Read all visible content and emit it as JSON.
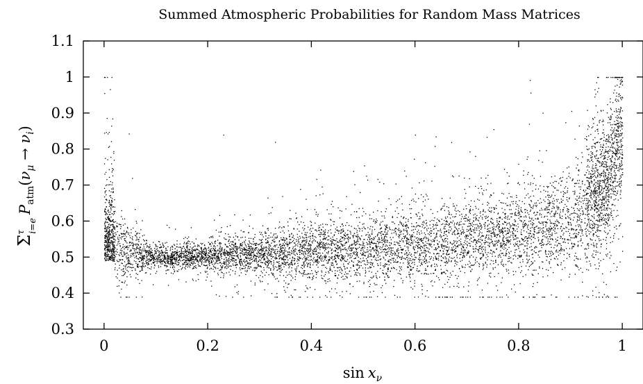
{
  "chart_data": {
    "type": "scatter",
    "title": "Summed Atmospheric Probabilities for Random Mass Matrices",
    "xlabel": "sin x_ν",
    "ylabel": "Σ_{i=e}^{τ} P_atm(ν_μ → ν_i)",
    "xlim": [
      -0.04,
      1.04
    ],
    "ylim": [
      0.3,
      1.1
    ],
    "x_ticks": [
      "0",
      "0.2",
      "0.4",
      "0.6",
      "0.8",
      "1"
    ],
    "y_ticks": [
      "0.3",
      "0.4",
      "0.5",
      "0.6",
      "0.7",
      "0.8",
      "0.9",
      "1",
      "1.1"
    ],
    "grid": false,
    "legend": "none",
    "marker_color": "#000000",
    "point_count_estimate": 8000,
    "trend_description": "Dense band near 0.5 for small x, widening and rising to ~0.6 mean near x=0.9; sharp rise to ~1.0 as x→1; tail up to ~0.76 near x=0.",
    "band_profile": [
      {
        "x": 0.01,
        "center": 0.52,
        "spread": 0.06
      },
      {
        "x": 0.1,
        "center": 0.5,
        "spread": 0.015
      },
      {
        "x": 0.2,
        "center": 0.505,
        "spread": 0.02
      },
      {
        "x": 0.3,
        "center": 0.51,
        "spread": 0.03
      },
      {
        "x": 0.4,
        "center": 0.515,
        "spread": 0.04
      },
      {
        "x": 0.5,
        "center": 0.525,
        "spread": 0.045
      },
      {
        "x": 0.6,
        "center": 0.535,
        "spread": 0.05
      },
      {
        "x": 0.7,
        "center": 0.55,
        "spread": 0.055
      },
      {
        "x": 0.8,
        "center": 0.57,
        "spread": 0.06
      },
      {
        "x": 0.9,
        "center": 0.6,
        "spread": 0.07
      },
      {
        "x": 0.97,
        "center": 0.7,
        "spread": 0.09
      },
      {
        "x": 1.0,
        "center": 0.86,
        "spread": 0.1
      }
    ],
    "notable_points": [
      {
        "x": 0.0,
        "y": 1.0
      },
      {
        "x": 0.0,
        "y": 0.76
      },
      {
        "x": 0.23,
        "y": 0.84
      },
      {
        "x": 0.33,
        "y": 0.82
      },
      {
        "x": 0.6,
        "y": 0.84
      },
      {
        "x": 0.64,
        "y": 0.835
      },
      {
        "x": 0.82,
        "y": 0.87
      },
      {
        "x": 1.0,
        "y": 1.0
      },
      {
        "x": 0.56,
        "y": 0.395
      }
    ]
  }
}
